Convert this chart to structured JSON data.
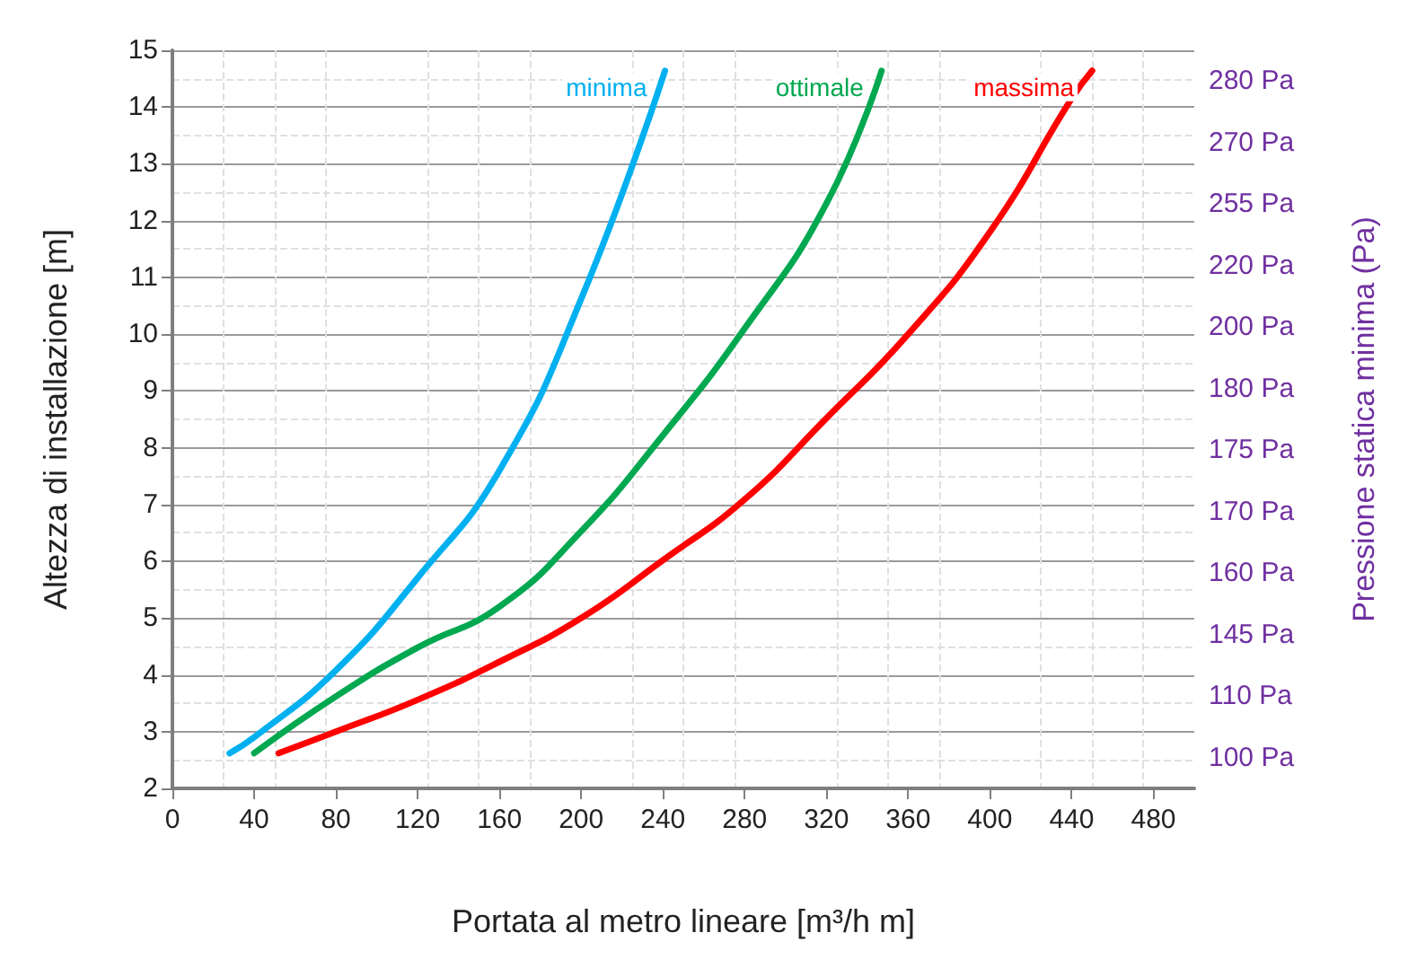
{
  "chart_data": {
    "type": "line",
    "xlabel": "Portata al metro lineare [m³/h m]",
    "ylabel": "Altezza di installazione [m]",
    "y2label": "Pressione statica minima (Pa)",
    "xlim": [
      0,
      500
    ],
    "xticks": [
      0,
      40,
      80,
      120,
      160,
      200,
      240,
      280,
      320,
      360,
      400,
      440,
      480
    ],
    "ylim": [
      2,
      15
    ],
    "yticks": [
      2,
      3,
      4,
      5,
      6,
      7,
      8,
      9,
      10,
      11,
      12,
      13,
      14,
      15
    ],
    "annotations": [
      "280 Pa",
      "270 Pa",
      "255 Pa",
      "220 Pa",
      "200 Pa",
      "180 Pa",
      "175 Pa",
      "170 Pa",
      "160 Pa",
      "145 Pa",
      "110 Pa",
      "100 Pa"
    ],
    "grid": true,
    "legend": false,
    "marker": "none",
    "line_style": "solid",
    "series": [
      {
        "name": "minima",
        "color": "#00b0f0",
        "x": [
          28,
          40,
          80,
          120,
          160,
          200,
          241
        ],
        "values": [
          2.62,
          2.9,
          4.08,
          5.71,
          7.6,
          10.62,
          14.64
        ]
      },
      {
        "name": "ottimale",
        "color": "#00a850",
        "x": [
          40,
          80,
          120,
          160,
          200,
          240,
          280,
          320,
          347
        ],
        "values": [
          2.62,
          3.62,
          4.48,
          5.2,
          6.53,
          8.22,
          10.1,
          12.3,
          14.64
        ]
      },
      {
        "name": "massima",
        "color": "#ff0000",
        "x": [
          52,
          80,
          120,
          160,
          200,
          240,
          280,
          320,
          360,
          400,
          440,
          450
        ],
        "values": [
          2.62,
          3.0,
          3.56,
          4.23,
          5.0,
          6.02,
          7.09,
          8.52,
          10.0,
          11.8,
          14.15,
          14.64
        ]
      }
    ]
  }
}
